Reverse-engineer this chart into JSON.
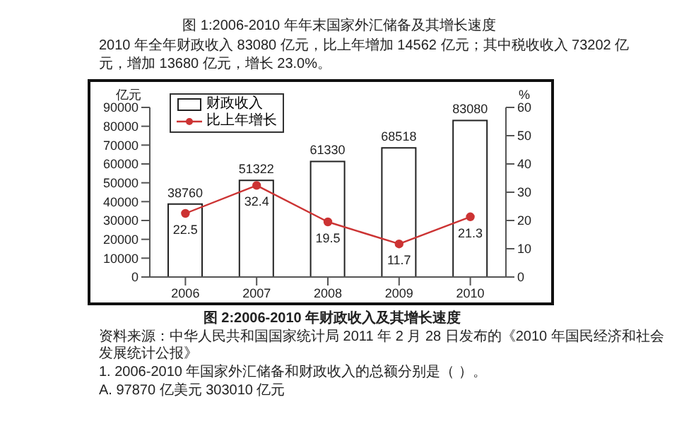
{
  "chart_data": {
    "type": "bar",
    "title": "图 2:2006-2010 年财政收入及其增长速度",
    "annotations": [
      "图 1:2006-2010 年年末国家外汇储备及其增长速度",
      "2010 年全年财政收入 83080 亿元，比上年增加 14562 亿元；其中税收收入 73202 亿元，增加 13680 亿元，增长 23.0%。",
      "资料来源：中华人民共和国国家统计局 2011 年 2 月 28 日发布的《2010 年国民经济和社会发展统计公报》",
      "1. 2006-2010 年国家外汇储备和财政收入的总额分别是（ ）。",
      "A. 97870 亿美元 303010 亿元"
    ],
    "categories": [
      "2006",
      "2007",
      "2008",
      "2009",
      "2010"
    ],
    "ylabel": "亿元",
    "y2label": "%",
    "series": [
      {
        "name": "财政收入",
        "color": "#ffffff",
        "values": [
          38760,
          51322,
          61330,
          68518,
          83080
        ]
      },
      {
        "name": "比上年增长",
        "type": "line",
        "axis": "y2",
        "color": "#cc3333",
        "values": [
          22.5,
          32.4,
          19.5,
          11.7,
          21.3
        ]
      }
    ],
    "ylim": [
      0,
      90000
    ],
    "yticks": [
      0,
      10000,
      20000,
      30000,
      40000,
      50000,
      60000,
      70000,
      80000,
      90000
    ],
    "y2lim": [
      0,
      60
    ],
    "y2ticks": [
      0,
      10,
      20,
      30,
      40,
      50,
      60
    ],
    "data_labels": true,
    "legend": "top left",
    "grid": false,
    "marker": "circle",
    "line_style": "solid"
  }
}
